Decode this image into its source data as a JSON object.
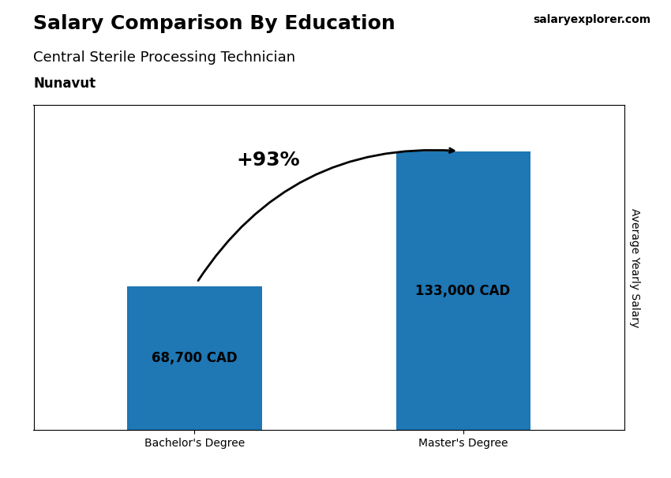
{
  "chart_data": {
    "type": "bar",
    "title": "Salary Comparison By Education",
    "subtitle": "Central Sterile Processing Technician",
    "region": "Nunavut",
    "source": "salaryexplorer.com",
    "y_label": "Average Yearly Salary",
    "categories": [
      "Bachelor's Degree",
      "Master's Degree"
    ],
    "values": [
      68700,
      133000
    ],
    "value_labels": [
      "68,700 CAD",
      "133,000 CAD"
    ],
    "data_labels": true,
    "change_annotation": "+93%",
    "ylim": [
      0,
      155000
    ],
    "tick_labels": "x",
    "grid": false
  }
}
